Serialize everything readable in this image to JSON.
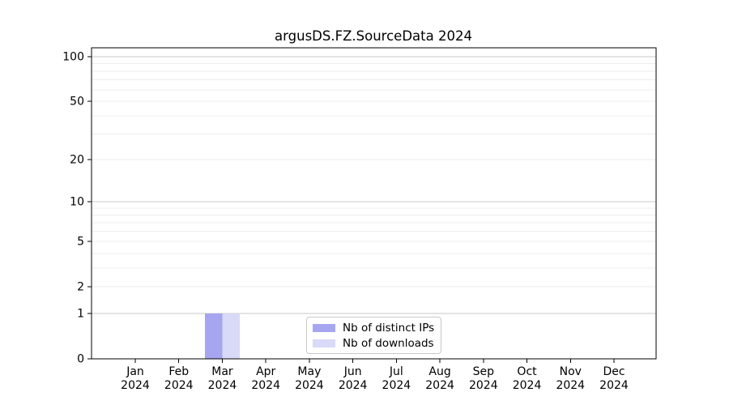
{
  "chart_data": {
    "type": "bar",
    "title": "argusDS.FZ.SourceData 2024",
    "categories": [
      {
        "line1": "Jan",
        "line2": "2024"
      },
      {
        "line1": "Feb",
        "line2": "2024"
      },
      {
        "line1": "Mar",
        "line2": "2024"
      },
      {
        "line1": "Apr",
        "line2": "2024"
      },
      {
        "line1": "May",
        "line2": "2024"
      },
      {
        "line1": "Jun",
        "line2": "2024"
      },
      {
        "line1": "Jul",
        "line2": "2024"
      },
      {
        "line1": "Aug",
        "line2": "2024"
      },
      {
        "line1": "Sep",
        "line2": "2024"
      },
      {
        "line1": "Oct",
        "line2": "2024"
      },
      {
        "line1": "Nov",
        "line2": "2024"
      },
      {
        "line1": "Dec",
        "line2": "2024"
      }
    ],
    "series": [
      {
        "name": "Nb of distinct IPs",
        "color": "#a6a6f0",
        "values": [
          0,
          0,
          1,
          0,
          0,
          0,
          0,
          0,
          0,
          0,
          0,
          0
        ]
      },
      {
        "name": "Nb of downloads",
        "color": "#d9d9f8",
        "values": [
          0,
          0,
          1,
          0,
          0,
          0,
          0,
          0,
          0,
          0,
          0,
          0
        ]
      }
    ],
    "y_axis": {
      "scale": "log1p",
      "max": 100,
      "tick_values": [
        0,
        1,
        2,
        5,
        10,
        20,
        50,
        100
      ],
      "major_gridlines": [
        1,
        10,
        100
      ],
      "minor_gridlines": [
        2,
        3,
        4,
        5,
        6,
        7,
        8,
        9,
        20,
        30,
        40,
        50,
        60,
        70,
        80,
        90
      ]
    },
    "x_axis": {
      "gridlines": false
    },
    "legend_position": "bottom-center-inside",
    "colors": {
      "major_grid": "#c9c9c9",
      "minor_grid": "#ececec",
      "axis": "#000000",
      "text": "#000000"
    }
  }
}
